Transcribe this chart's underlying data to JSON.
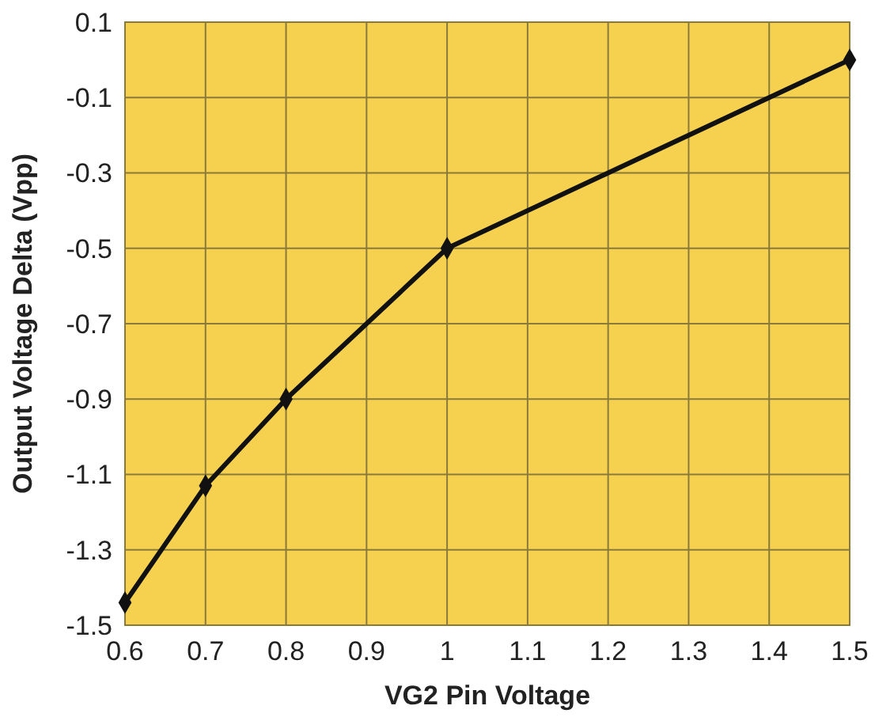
{
  "chart_data": {
    "type": "line",
    "xlabel": "VG2 Pin Voltage",
    "ylabel": "Output Voltage Delta (Vpp)",
    "x": [
      0.6,
      0.7,
      0.8,
      1,
      1.5
    ],
    "series": [
      {
        "color": "#111111",
        "values": [
          -1.44,
          -1.13,
          -0.9,
          -0.5,
          0.0
        ]
      }
    ],
    "xlim": [
      0.6,
      1.5
    ],
    "xticks": [
      0.6,
      0.7,
      0.8,
      0.9,
      1,
      1.1,
      1.2,
      1.3,
      1.4,
      1.5
    ],
    "ylim": [
      -1.5,
      0.1
    ],
    "yticks": [
      -1.5,
      -1.3,
      -1.1,
      -0.9,
      -0.7,
      -0.5,
      -0.3,
      -0.1,
      0.1
    ],
    "grid": true,
    "marker": "diamond",
    "line_style": "solid"
  }
}
